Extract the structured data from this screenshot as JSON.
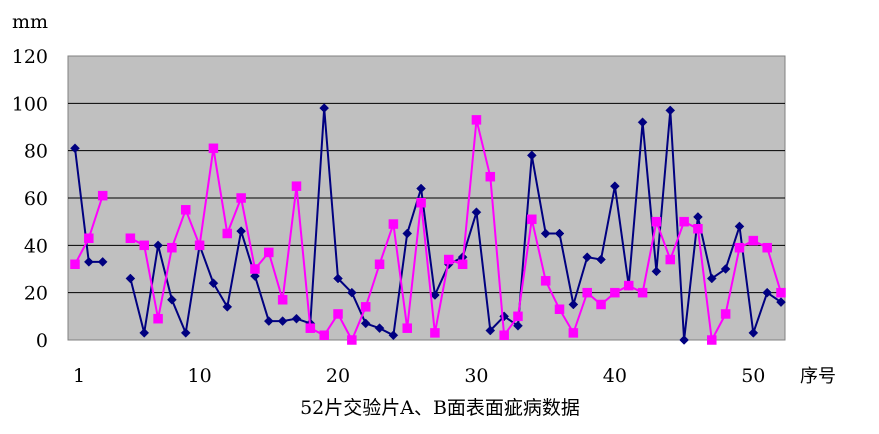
{
  "chart_data": {
    "type": "line",
    "ylabel": "mm",
    "xlabel": "序号",
    "caption": "52片交验片A、B面表面疵病数据",
    "ylim": [
      0,
      120
    ],
    "yticks": [
      0,
      20,
      40,
      60,
      80,
      100,
      120
    ],
    "xticks": [
      1,
      10,
      20,
      30,
      40,
      50
    ],
    "grid": true,
    "legend": "none",
    "background": "#c0c0c0",
    "x": [
      1,
      2,
      3,
      4,
      5,
      6,
      7,
      8,
      9,
      10,
      11,
      12,
      13,
      14,
      15,
      16,
      17,
      18,
      19,
      20,
      21,
      22,
      23,
      24,
      25,
      26,
      27,
      28,
      29,
      30,
      31,
      32,
      33,
      34,
      35,
      36,
      37,
      38,
      39,
      40,
      41,
      42,
      43,
      44,
      45,
      46,
      47,
      48,
      49,
      50,
      51,
      52
    ],
    "series": [
      {
        "color": "#000080",
        "marker": "diamond",
        "values": [
          81,
          33,
          33,
          null,
          26,
          3,
          40,
          17,
          3,
          40,
          24,
          14,
          46,
          27,
          8,
          8,
          9,
          7,
          98,
          26,
          20,
          7,
          5,
          2,
          45,
          64,
          19,
          32,
          35,
          54,
          4,
          10,
          6,
          78,
          45,
          45,
          15,
          35,
          34,
          65,
          23,
          92,
          29,
          97,
          0,
          52,
          26,
          30,
          48,
          3,
          20,
          16
        ]
      },
      {
        "color": "#ff00ff",
        "marker": "square",
        "values": [
          32,
          43,
          61,
          null,
          43,
          40,
          9,
          39,
          55,
          40,
          81,
          45,
          60,
          30,
          37,
          17,
          65,
          5,
          2,
          11,
          0,
          14,
          32,
          49,
          5,
          58,
          3,
          34,
          32,
          93,
          69,
          2,
          10,
          51,
          25,
          13,
          3,
          20,
          15,
          20,
          23,
          20,
          50,
          34,
          50,
          47,
          0,
          11,
          39,
          42,
          39,
          20
        ]
      }
    ]
  }
}
